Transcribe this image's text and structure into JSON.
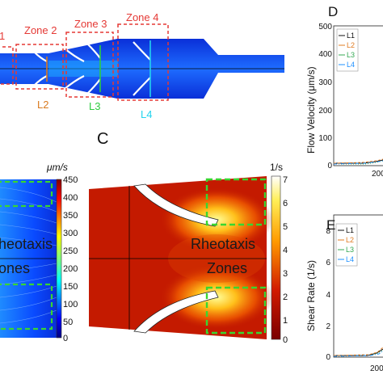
{
  "top": {
    "zones": [
      {
        "label": "1"
      },
      {
        "label": "Zone 2"
      },
      {
        "label": "Zone 3"
      },
      {
        "label": "Zone 4"
      }
    ],
    "lines": [
      {
        "label": "L2",
        "color": "#d97a1e"
      },
      {
        "label": "L3",
        "color": "#2ecc40"
      },
      {
        "label": "L4",
        "color": "#22d3ee"
      }
    ]
  },
  "panel_b": {
    "unit": "μm/s",
    "ticks": [
      "450",
      "400",
      "350",
      "300",
      "250",
      "200",
      "150",
      "100",
      "50",
      "0"
    ],
    "overlay_1": "heotaxis",
    "overlay_2": "ones"
  },
  "panel_c": {
    "letter": "C",
    "unit": "1/s",
    "ticks": [
      "7",
      "6",
      "5",
      "4",
      "3",
      "2",
      "1",
      "0"
    ],
    "overlay_1": "Rheotaxis",
    "overlay_2": "Zones"
  },
  "panel_d": {
    "letter": "D",
    "ylabel": "Flow Velocity (μm/s)",
    "yticks": [
      "500",
      "400",
      "300",
      "200",
      "100",
      "0"
    ],
    "xtick": "200",
    "legend": [
      {
        "label": "L1",
        "color": "#111111"
      },
      {
        "label": "L2",
        "color": "#e07b22"
      },
      {
        "label": "L3",
        "color": "#34a853"
      },
      {
        "label": "L4",
        "color": "#1e90ff"
      }
    ]
  },
  "panel_e": {
    "letter": "E",
    "ylabel": "Shear Rate (1/s)",
    "yticks": [
      "8",
      "6",
      "4",
      "2",
      "0"
    ],
    "xtick": "200",
    "legend": [
      {
        "label": "L1",
        "color": "#111111"
      },
      {
        "label": "L2",
        "color": "#e07b22"
      },
      {
        "label": "L3",
        "color": "#34a853"
      },
      {
        "label": "L4",
        "color": "#1e90ff"
      }
    ]
  },
  "colors": {
    "zone_box": "#e53935",
    "dash_green": "#39d631"
  }
}
